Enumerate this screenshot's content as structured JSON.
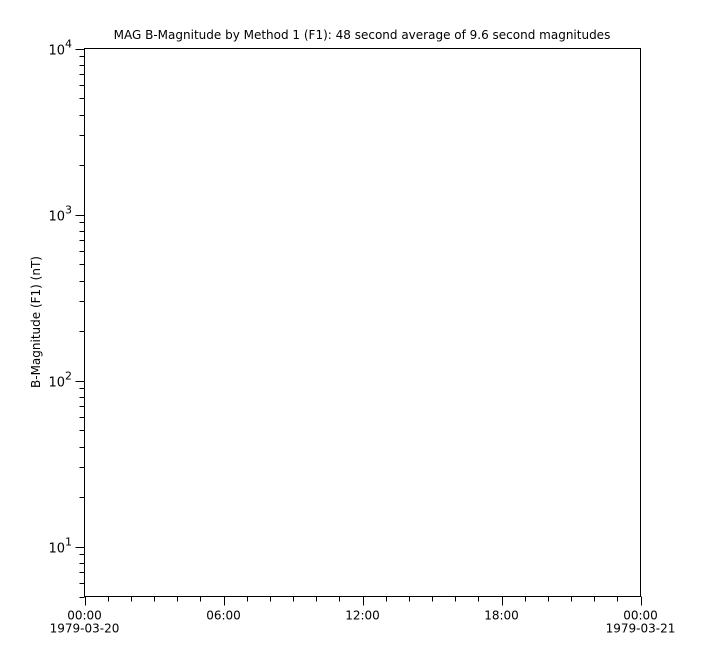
{
  "chart_data": {
    "type": "line",
    "title": "MAG  B-Magnitude by Method 1 (F1): 48 second average of 9.6 second magnitudes",
    "xlabel": "",
    "ylabel": "B-Magnitude (F1) (nT)",
    "yscale": "log",
    "ylim": [
      5,
      10000
    ],
    "xlim": [
      "1979-03-20T00:00",
      "1979-03-21T00:00"
    ],
    "y_ticks": [
      {
        "base": "10",
        "exp": "1",
        "value": 10
      },
      {
        "base": "10",
        "exp": "2",
        "value": 100
      },
      {
        "base": "10",
        "exp": "3",
        "value": 1000
      },
      {
        "base": "10",
        "exp": "4",
        "value": 10000
      }
    ],
    "x_ticks": [
      {
        "time": "00:00",
        "date": "1979-03-20",
        "hour": 0
      },
      {
        "time": "06:00",
        "date": "",
        "hour": 6
      },
      {
        "time": "12:00",
        "date": "",
        "hour": 12
      },
      {
        "time": "18:00",
        "date": "",
        "hour": 18
      },
      {
        "time": "00:00",
        "date": "1979-03-21",
        "hour": 24
      }
    ],
    "x_minor_tick_hours": 1,
    "grid": false,
    "series": []
  }
}
